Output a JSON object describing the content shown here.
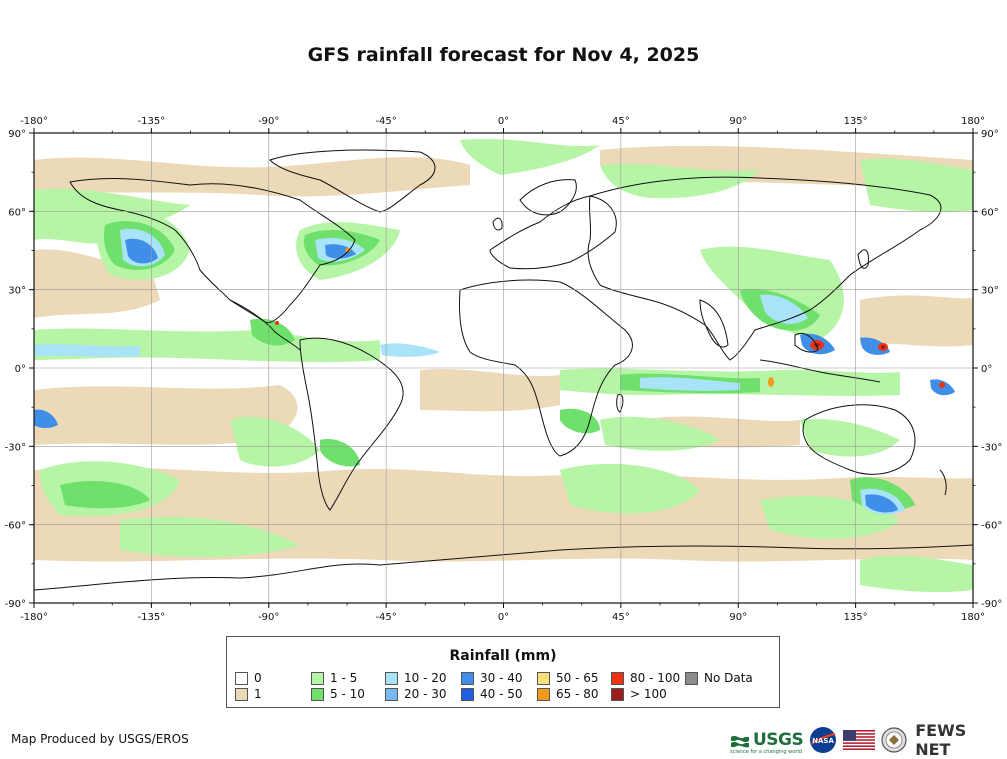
{
  "title": "GFS rainfall forecast for Nov 4, 2025",
  "axes": {
    "lon_ticks": [
      -180,
      -135,
      -90,
      -45,
      0,
      45,
      90,
      135,
      180
    ],
    "lat_ticks": [
      90,
      60,
      30,
      0,
      -30,
      -60,
      -90
    ],
    "lon_labels": [
      "-180°",
      "-135°",
      "-90°",
      "-45°",
      "0°",
      "45°",
      "90°",
      "135°",
      "180°"
    ],
    "lat_labels": [
      "90°",
      "60°",
      "30°",
      "0°",
      "-30°",
      "-60°",
      "-90°"
    ]
  },
  "legend": {
    "title": "Rainfall (mm)",
    "items": [
      {
        "label": "0",
        "color": "#ffffff"
      },
      {
        "label": "1",
        "color": "#ecd9b8"
      },
      {
        "label": "1 - 5",
        "color": "#b6f5a6"
      },
      {
        "label": "5 - 10",
        "color": "#6fe06c"
      },
      {
        "label": "10 - 20",
        "color": "#a9e3f7"
      },
      {
        "label": "20 - 30",
        "color": "#7ab8f2"
      },
      {
        "label": "30 - 40",
        "color": "#3f8ee8"
      },
      {
        "label": "40 - 50",
        "color": "#1f5fe0"
      },
      {
        "label": "50 - 65",
        "color": "#f7e07a"
      },
      {
        "label": "65 - 80",
        "color": "#f29a1c"
      },
      {
        "label": "80 - 100",
        "color": "#ea3512"
      },
      {
        "label": "> 100",
        "color": "#9b1d1d"
      },
      {
        "label": "No Data",
        "color": "#8c8c8c"
      }
    ]
  },
  "credit": "Map Produced by USGS/EROS",
  "logos": {
    "usgs": "USGS",
    "usgs_tagline": "science for a changing world",
    "nasa": "NASA",
    "fews": "FEWS NET"
  }
}
